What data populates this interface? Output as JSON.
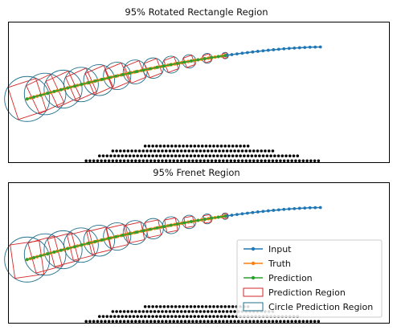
{
  "figure": {
    "panels": [
      {
        "title": "95% Rotated Rectangle Region"
      },
      {
        "title": "95% Frenet Region"
      }
    ]
  },
  "legend": {
    "items": [
      {
        "label": "Input",
        "kind": "line",
        "color": "#1f77b4"
      },
      {
        "label": "Truth",
        "kind": "line",
        "color": "#ff7f0e"
      },
      {
        "label": "Prediction",
        "kind": "line",
        "color": "#2ca02c"
      },
      {
        "label": "Prediction Region",
        "kind": "rect",
        "color": "#d62728"
      },
      {
        "label": "Circle Prediction Region",
        "kind": "rect",
        "color": "#1f6f8b"
      }
    ]
  },
  "chart_data": [
    {
      "type": "line",
      "title": "95% Rotated Rectangle Region",
      "xlabel": "",
      "ylabel": "",
      "xlim": [
        0,
        100
      ],
      "ylim": [
        0,
        100
      ],
      "grid": false,
      "region_style": "rotated-rectangle",
      "series": [
        {
          "name": "Input",
          "color": "#1f77b4",
          "x_start": 56,
          "x_end": 82,
          "points": 20
        },
        {
          "name": "Truth",
          "color": "#ff7f0e",
          "x_start": 5,
          "x_end": 57,
          "points": 60
        },
        {
          "name": "Prediction",
          "color": "#2ca02c",
          "x_start": 5,
          "x_end": 57,
          "points": 30
        }
      ],
      "boundary": {
        "name": "lane boundary",
        "color": "#000000"
      }
    },
    {
      "type": "line",
      "title": "95% Frenet Region",
      "xlabel": "",
      "ylabel": "",
      "xlim": [
        0,
        100
      ],
      "ylim": [
        0,
        100
      ],
      "grid": false,
      "legend_position": "lower-right",
      "region_style": "frenet",
      "series": [
        {
          "name": "Input",
          "color": "#1f77b4",
          "x_start": 56,
          "x_end": 82,
          "points": 20
        },
        {
          "name": "Truth",
          "color": "#ff7f0e",
          "x_start": 5,
          "x_end": 57,
          "points": 60
        },
        {
          "name": "Prediction",
          "color": "#2ca02c",
          "x_start": 5,
          "x_end": 57,
          "points": 30
        }
      ],
      "boundary": {
        "name": "lane boundary",
        "color": "#000000"
      }
    }
  ]
}
